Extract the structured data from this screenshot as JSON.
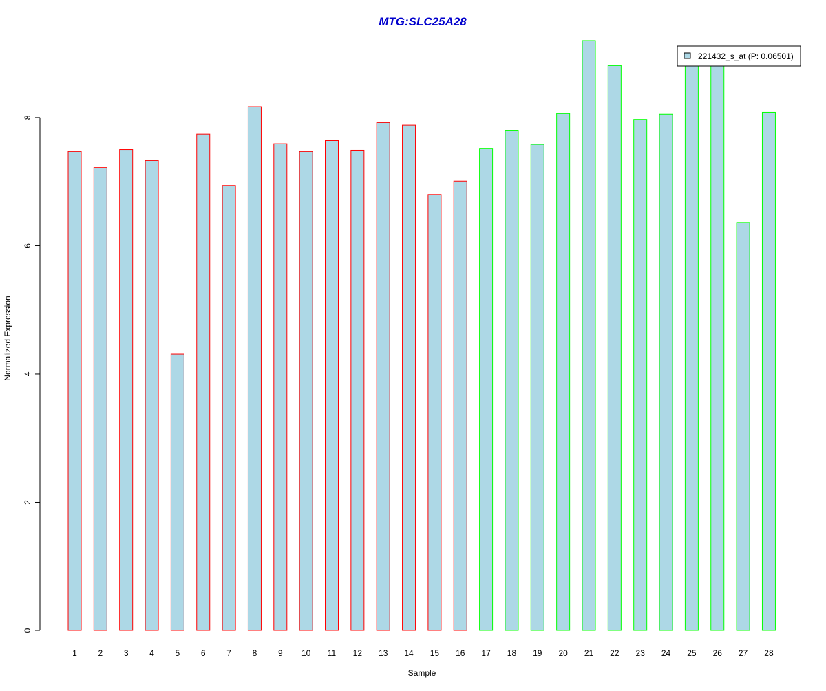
{
  "chart_data": {
    "type": "bar",
    "title": "MTG:SLC25A28",
    "xlabel": "Sample",
    "ylabel": "Normalized Expression",
    "ylim": [
      0,
      9.2
    ],
    "yticks": [
      0,
      2,
      4,
      6,
      8
    ],
    "categories": [
      "1",
      "2",
      "3",
      "4",
      "5",
      "6",
      "7",
      "8",
      "9",
      "10",
      "11",
      "12",
      "13",
      "14",
      "15",
      "16",
      "17",
      "18",
      "19",
      "20",
      "21",
      "22",
      "23",
      "24",
      "25",
      "26",
      "27",
      "28"
    ],
    "series": [
      {
        "name": "221432_s_at (P: 0.06501)",
        "values": [
          7.47,
          7.22,
          7.5,
          7.33,
          4.31,
          7.74,
          6.94,
          8.17,
          7.59,
          7.47,
          7.64,
          7.49,
          7.92,
          7.88,
          6.8,
          7.01,
          7.52,
          7.8,
          7.58,
          8.06,
          9.2,
          8.81,
          7.97,
          8.05,
          8.81,
          8.81,
          6.36,
          8.08
        ]
      }
    ],
    "bar_fill": "#add8e6",
    "group_border_colors": [
      "#ff0000",
      "#ff0000",
      "#ff0000",
      "#ff0000",
      "#ff0000",
      "#ff0000",
      "#ff0000",
      "#ff0000",
      "#ff0000",
      "#ff0000",
      "#ff0000",
      "#ff0000",
      "#ff0000",
      "#ff0000",
      "#ff0000",
      "#ff0000",
      "#00ff00",
      "#00ff00",
      "#00ff00",
      "#00ff00",
      "#00ff00",
      "#00ff00",
      "#00ff00",
      "#00ff00",
      "#00ff00",
      "#00ff00",
      "#00ff00",
      "#00ff00"
    ],
    "title_color": "#0000cd",
    "legend_position": "top-right",
    "grid": false
  }
}
